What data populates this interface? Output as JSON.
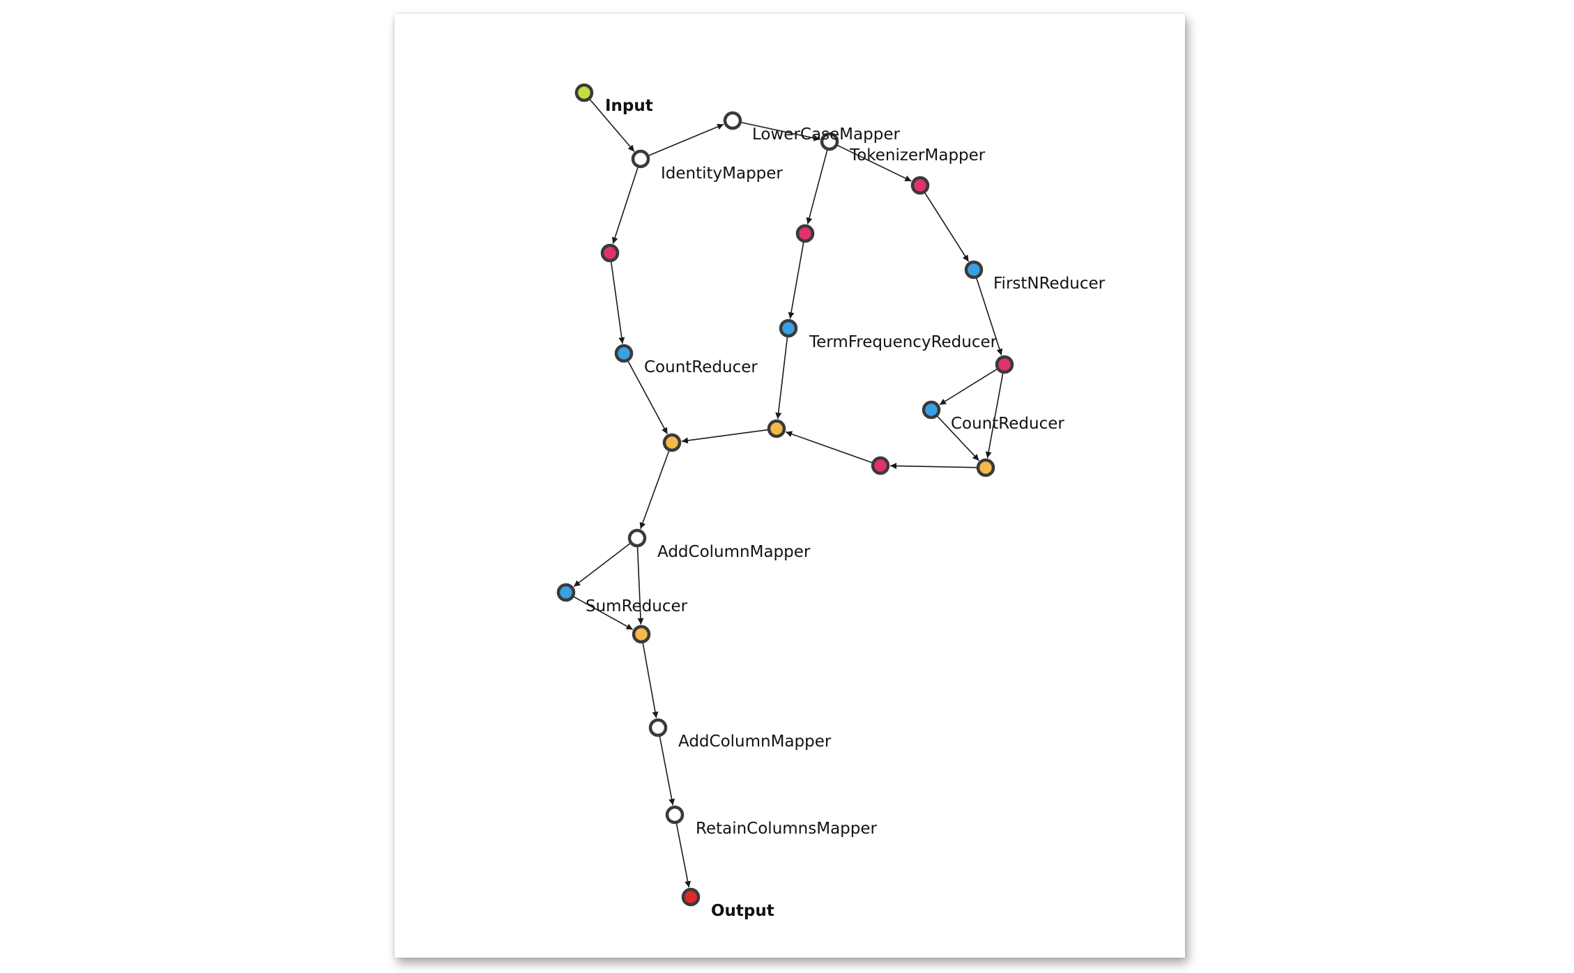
{
  "colors": {
    "input": "#c5de3c",
    "output": "#e02a2a",
    "mapper": "#ffffff",
    "intermediate": "#e0326f",
    "reducer": "#3aa0e4",
    "join": "#f7b84a",
    "edge": "#1a1a1a",
    "node_border": "#3a3a3a"
  },
  "nodes": [
    {
      "id": "input",
      "label": "Input",
      "kind": "input",
      "bold": true
    },
    {
      "id": "identity",
      "label": "IdentityMapper",
      "kind": "mapper"
    },
    {
      "id": "lowercase",
      "label": "LowerCaseMapper",
      "kind": "mapper"
    },
    {
      "id": "tokenizer",
      "label": "TokenizerMapper",
      "kind": "mapper"
    },
    {
      "id": "i1",
      "label": "",
      "kind": "intermediate"
    },
    {
      "id": "count1",
      "label": "CountReducer",
      "kind": "reducer"
    },
    {
      "id": "i2",
      "label": "",
      "kind": "intermediate"
    },
    {
      "id": "termfreq",
      "label": "TermFrequencyReducer",
      "kind": "reducer"
    },
    {
      "id": "i3",
      "label": "",
      "kind": "intermediate"
    },
    {
      "id": "firstn",
      "label": "FirstNReducer",
      "kind": "reducer"
    },
    {
      "id": "i4",
      "label": "",
      "kind": "intermediate"
    },
    {
      "id": "count2",
      "label": "CountReducer",
      "kind": "reducer"
    },
    {
      "id": "j3",
      "label": "",
      "kind": "join"
    },
    {
      "id": "i5",
      "label": "",
      "kind": "intermediate"
    },
    {
      "id": "j2",
      "label": "",
      "kind": "join"
    },
    {
      "id": "j1",
      "label": "",
      "kind": "join"
    },
    {
      "id": "addcol1",
      "label": "AddColumnMapper",
      "kind": "mapper"
    },
    {
      "id": "sum",
      "label": "SumReducer",
      "kind": "reducer"
    },
    {
      "id": "j4",
      "label": "",
      "kind": "join"
    },
    {
      "id": "addcol2",
      "label": "AddColumnMapper",
      "kind": "mapper"
    },
    {
      "id": "retain",
      "label": "RetainColumnsMapper",
      "kind": "mapper"
    },
    {
      "id": "output",
      "label": "Output",
      "kind": "output",
      "bold": true
    }
  ],
  "edges": [
    [
      "input",
      "identity"
    ],
    [
      "identity",
      "lowercase"
    ],
    [
      "lowercase",
      "tokenizer"
    ],
    [
      "identity",
      "i1"
    ],
    [
      "i1",
      "count1"
    ],
    [
      "count1",
      "j1"
    ],
    [
      "tokenizer",
      "i2"
    ],
    [
      "i2",
      "termfreq"
    ],
    [
      "termfreq",
      "j2"
    ],
    [
      "tokenizer",
      "i3"
    ],
    [
      "i3",
      "firstn"
    ],
    [
      "firstn",
      "i4"
    ],
    [
      "i4",
      "count2"
    ],
    [
      "i4",
      "j3"
    ],
    [
      "count2",
      "j3"
    ],
    [
      "j3",
      "i5"
    ],
    [
      "i5",
      "j2"
    ],
    [
      "j2",
      "j1"
    ],
    [
      "j1",
      "addcol1"
    ],
    [
      "addcol1",
      "sum"
    ],
    [
      "addcol1",
      "j4"
    ],
    [
      "sum",
      "j4"
    ],
    [
      "j4",
      "addcol2"
    ],
    [
      "addcol2",
      "retain"
    ],
    [
      "retain",
      "output"
    ]
  ]
}
